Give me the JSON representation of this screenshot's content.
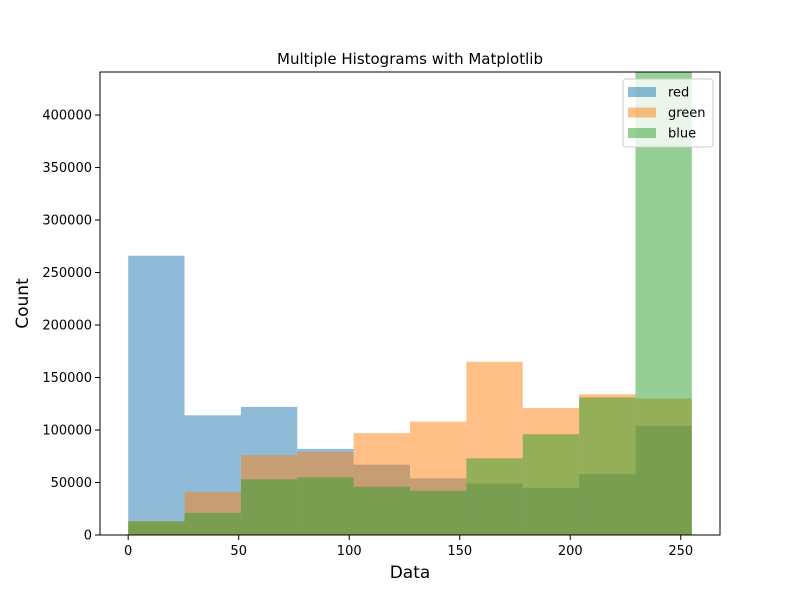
{
  "chart_data": {
    "type": "bar",
    "title": "Multiple Histograms with Matplotlib",
    "xlabel": "Data",
    "ylabel": "Count",
    "bin_edges": [
      0,
      25.5,
      51,
      76.5,
      102,
      127.5,
      153,
      178.5,
      204,
      229.5,
      255
    ],
    "xlim": [
      -12.75,
      267.75
    ],
    "ylim": [
      0,
      441000
    ],
    "xticks": [
      0,
      50,
      100,
      150,
      200,
      250
    ],
    "yticks": [
      0,
      50000,
      100000,
      150000,
      200000,
      250000,
      300000,
      350000,
      400000
    ],
    "grid": false,
    "legend_placement": "top-right",
    "bar_alpha": 0.5,
    "series": [
      {
        "name": "red",
        "color": "#1f77b4",
        "values": [
          266000,
          114000,
          122000,
          82000,
          67000,
          54000,
          49000,
          45000,
          58000,
          104000
        ]
      },
      {
        "name": "green",
        "color": "#ff7f0e",
        "values": [
          13000,
          41000,
          76000,
          79000,
          97000,
          108000,
          165000,
          121000,
          134000,
          130000
        ]
      },
      {
        "name": "blue",
        "color": "#2ca02c",
        "values": [
          13000,
          21000,
          53000,
          55000,
          46000,
          42000,
          73000,
          96000,
          131000,
          441000
        ]
      }
    ]
  }
}
